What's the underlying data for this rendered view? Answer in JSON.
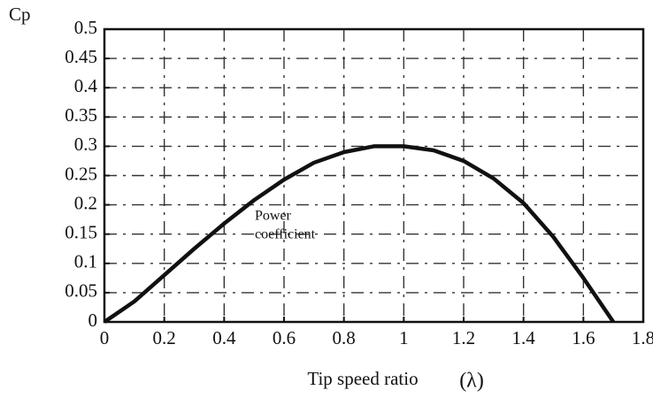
{
  "chart_data": {
    "type": "line",
    "ylabel": "Cp",
    "xlabel": "Tip speed ratio",
    "xlabel_symbol": "(λ)",
    "annotation": [
      "Power",
      "coefficient"
    ],
    "x": [
      0,
      0.1,
      0.2,
      0.3,
      0.4,
      0.5,
      0.6,
      0.7,
      0.8,
      0.9,
      1.0,
      1.1,
      1.2,
      1.3,
      1.4,
      1.5,
      1.6,
      1.7
    ],
    "series": [
      {
        "color": "#111111",
        "values": [
          0,
          0.035,
          0.08,
          0.125,
          0.168,
          0.208,
          0.243,
          0.272,
          0.29,
          0.3,
          0.3,
          0.293,
          0.275,
          0.245,
          0.203,
          0.145,
          0.075,
          0
        ]
      }
    ],
    "xlim": [
      0,
      1.8
    ],
    "xticks": [
      0,
      0.2,
      0.4,
      0.6,
      0.8,
      1,
      1.2,
      1.4,
      1.6,
      1.8
    ],
    "ylim": [
      0,
      0.5
    ],
    "yticks": [
      0,
      0.05,
      0.1,
      0.15,
      0.2,
      0.25,
      0.3,
      0.35,
      0.4,
      0.45,
      0.5
    ],
    "grid": true
  }
}
